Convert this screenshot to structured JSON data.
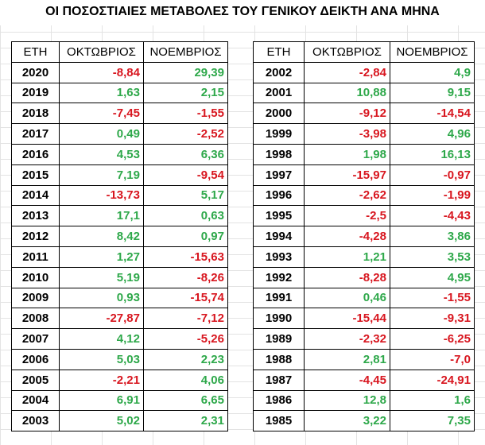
{
  "title": "ΟΙ ΠΟΣΟΣΤΙΑΙΕΣ ΜΕΤΑΒΟΛΕΣ ΤΟΥ ΓΕΝΙΚΟΥ ΔΕΙΚΤΗ ΑΝΑ ΜΗΝΑ",
  "colors": {
    "positive": "#2ea84a",
    "negative": "#d8161f",
    "border": "#000000"
  },
  "headers": {
    "year": "ΕΤΗ",
    "october": "ΟΚΤΩΒΡΙΟΣ",
    "november": "ΝΟΕΜΒΡΙΟΣ"
  },
  "tables": [
    {
      "rows": [
        {
          "year": "2020",
          "oct": "-8,84",
          "nov": "29,39"
        },
        {
          "year": "2019",
          "oct": "1,63",
          "nov": "2,15"
        },
        {
          "year": "2018",
          "oct": "-7,45",
          "nov": "-1,55"
        },
        {
          "year": "2017",
          "oct": "0,49",
          "nov": "-2,52"
        },
        {
          "year": "2016",
          "oct": "4,53",
          "nov": "6,36"
        },
        {
          "year": "2015",
          "oct": "7,19",
          "nov": "-9,54"
        },
        {
          "year": "2014",
          "oct": "-13,73",
          "nov": "5,17"
        },
        {
          "year": "2013",
          "oct": "17,1",
          "nov": "0,63"
        },
        {
          "year": "2012",
          "oct": "8,42",
          "nov": "0,97"
        },
        {
          "year": "2011",
          "oct": "1,27",
          "nov": "-15,63"
        },
        {
          "year": "2010",
          "oct": "5,19",
          "nov": "-8,26"
        },
        {
          "year": "2009",
          "oct": "0,93",
          "nov": "-15,74"
        },
        {
          "year": "2008",
          "oct": "-27,87",
          "nov": "-7,12"
        },
        {
          "year": "2007",
          "oct": "4,12",
          "nov": "-5,26"
        },
        {
          "year": "2006",
          "oct": "5,03",
          "nov": "2,23"
        },
        {
          "year": "2005",
          "oct": "-2,21",
          "nov": "4,06"
        },
        {
          "year": "2004",
          "oct": "6,91",
          "nov": "6,65"
        },
        {
          "year": "2003",
          "oct": "5,02",
          "nov": "2,31"
        }
      ]
    },
    {
      "rows": [
        {
          "year": "2002",
          "oct": "-2,84",
          "nov": "4,9"
        },
        {
          "year": "2001",
          "oct": "10,88",
          "nov": "9,15"
        },
        {
          "year": "2000",
          "oct": "-9,12",
          "nov": "-14,54"
        },
        {
          "year": "1999",
          "oct": "-3,98",
          "nov": "4,96"
        },
        {
          "year": "1998",
          "oct": "1,98",
          "nov": "16,13"
        },
        {
          "year": "1997",
          "oct": "-15,97",
          "nov": "-0,97"
        },
        {
          "year": "1996",
          "oct": "-2,62",
          "nov": "-1,99"
        },
        {
          "year": "1995",
          "oct": "-2,5",
          "nov": "-4,43"
        },
        {
          "year": "1994",
          "oct": "-4,28",
          "nov": "3,86"
        },
        {
          "year": "1993",
          "oct": "1,21",
          "nov": "3,53"
        },
        {
          "year": "1992",
          "oct": "-8,28",
          "nov": "4,95"
        },
        {
          "year": "1991",
          "oct": "0,46",
          "nov": "-1,55"
        },
        {
          "year": "1990",
          "oct": "-15,44",
          "nov": "-9,31"
        },
        {
          "year": "1989",
          "oct": "-2,32",
          "nov": "-6,25"
        },
        {
          "year": "1988",
          "oct": "2,81",
          "nov": "-7,0"
        },
        {
          "year": "1987",
          "oct": "-4,45",
          "nov": "-24,91"
        },
        {
          "year": "1986",
          "oct": "12,8",
          "nov": "1,6"
        },
        {
          "year": "1985",
          "oct": "3,22",
          "nov": "7,35"
        }
      ]
    }
  ]
}
